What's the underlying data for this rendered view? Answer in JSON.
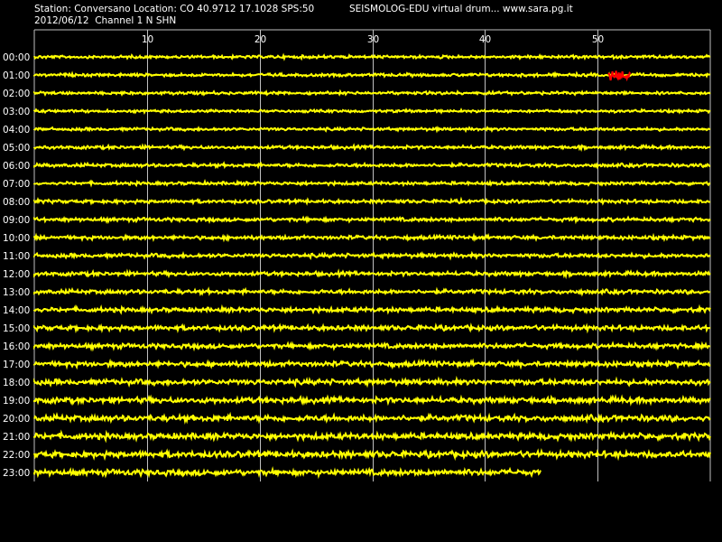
{
  "header": {
    "line1": "Station: Conversano Location: CO 40.9712 17.1028 SPS:50",
    "title": "SEISMOLOG-EDU virtual drum... www.sara.pg.it",
    "line2": "2012/06/12  Channel 1 N SHN"
  },
  "chart_data": {
    "type": "line",
    "title": "SEISMOLOG-EDU virtual drum... www.sara.pg.it",
    "xlabel": "",
    "ylabel": "",
    "x_unit_range": [
      0,
      60
    ],
    "xlim": [
      0,
      60
    ],
    "x_ticks": [
      10,
      20,
      30,
      40,
      50
    ],
    "grid": true,
    "colors": {
      "background": "#000000",
      "trace": "#ffff00",
      "event": "#ff0000",
      "grid": "#c0c0c0",
      "text": "#ffffff"
    },
    "rows": [
      {
        "label": "00:00",
        "end_minute": 60,
        "noise": 1.2
      },
      {
        "label": "01:00",
        "end_minute": 60,
        "noise": 1.2,
        "event": {
          "start": 51,
          "end": 53,
          "color": "#ff0000"
        }
      },
      {
        "label": "02:00",
        "end_minute": 60,
        "noise": 1.2
      },
      {
        "label": "03:00",
        "end_minute": 60,
        "noise": 1.1
      },
      {
        "label": "04:00",
        "end_minute": 60,
        "noise": 1.2
      },
      {
        "label": "05:00",
        "end_minute": 60,
        "noise": 1.3
      },
      {
        "label": "06:00",
        "end_minute": 60,
        "noise": 1.4
      },
      {
        "label": "07:00",
        "end_minute": 60,
        "noise": 1.3
      },
      {
        "label": "08:00",
        "end_minute": 60,
        "noise": 1.4
      },
      {
        "label": "09:00",
        "end_minute": 60,
        "noise": 1.5
      },
      {
        "label": "10:00",
        "end_minute": 60,
        "noise": 1.5
      },
      {
        "label": "11:00",
        "end_minute": 60,
        "noise": 1.6
      },
      {
        "label": "12:00",
        "end_minute": 60,
        "noise": 1.6
      },
      {
        "label": "13:00",
        "end_minute": 60,
        "noise": 1.7
      },
      {
        "label": "14:00",
        "end_minute": 60,
        "noise": 1.8
      },
      {
        "label": "15:00",
        "end_minute": 60,
        "noise": 1.9
      },
      {
        "label": "16:00",
        "end_minute": 60,
        "noise": 1.9
      },
      {
        "label": "17:00",
        "end_minute": 60,
        "noise": 2.0
      },
      {
        "label": "18:00",
        "end_minute": 60,
        "noise": 2.2
      },
      {
        "label": "19:00",
        "end_minute": 60,
        "noise": 2.3
      },
      {
        "label": "20:00",
        "end_minute": 60,
        "noise": 2.4
      },
      {
        "label": "21:00",
        "end_minute": 60,
        "noise": 2.4
      },
      {
        "label": "22:00",
        "end_minute": 60,
        "noise": 2.5
      },
      {
        "label": "23:00",
        "end_minute": 45,
        "noise": 2.4
      }
    ]
  }
}
